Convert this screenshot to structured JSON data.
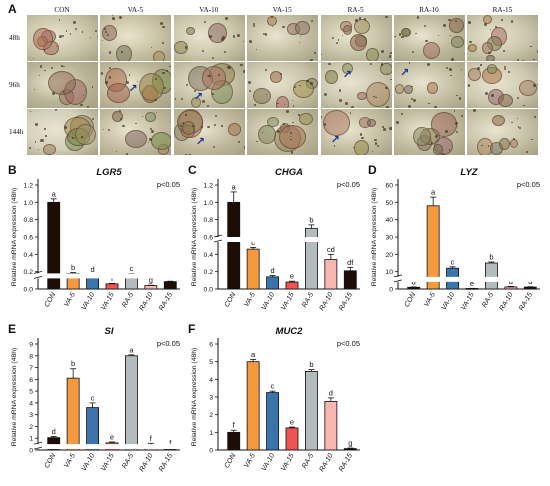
{
  "panel_letters": {
    "a": "A",
    "b": "B",
    "c": "C",
    "d": "D",
    "e": "E",
    "f": "F"
  },
  "micrographs": {
    "columns": [
      "CON",
      "VA-5",
      "VA-10",
      "VA-15",
      "RA-5",
      "RA-10",
      "RA-15"
    ],
    "rows": [
      "48h",
      "96h",
      "144h"
    ]
  },
  "colors": {
    "CON": "#1e0c07",
    "VA-5": "#f49a3e",
    "VA-10": "#3c73ad",
    "VA-15": "#ee5454",
    "RA-5": "#b4bbbc",
    "RA-10": "#f7b7b0",
    "RA-15": "#1e0c07"
  },
  "chart_data": [
    {
      "type": "bar",
      "panel": "B",
      "title": "LGR5",
      "pvalue": "p<0.05",
      "ylabel": "Relative mRNA expression (48h)",
      "categories": [
        "CON",
        "VA-5",
        "VA-10",
        "VA-15",
        "RA-5",
        "RA-10",
        "RA-15"
      ],
      "values": [
        1.0,
        0.18,
        0.16,
        0.06,
        0.17,
        0.04,
        0.085
      ],
      "errors": [
        0.04,
        0.01,
        0.01,
        0.005,
        0.01,
        0.004,
        0.005
      ],
      "letters": [
        "a",
        "b",
        "d",
        "f",
        "c",
        "g",
        "e"
      ],
      "ylim": [
        0,
        1.2
      ],
      "yticks": [
        "0.0",
        "0.2",
        "0.4",
        "0.6",
        "0.8",
        "1.0",
        "1.2"
      ],
      "axis_break": [
        0.15,
        0.18
      ]
    },
    {
      "type": "bar",
      "panel": "C",
      "title": "CHGA",
      "pvalue": "p<0.05",
      "ylabel": "Relative mRNA expression (48h)",
      "categories": [
        "CON",
        "VA-5",
        "VA-10",
        "VA-15",
        "RA-5",
        "RA-10",
        "RA-15"
      ],
      "values": [
        1.0,
        0.46,
        0.14,
        0.08,
        0.7,
        0.34,
        0.21
      ],
      "errors": [
        0.12,
        0.02,
        0.015,
        0.01,
        0.04,
        0.06,
        0.04
      ],
      "letters": [
        "a",
        "c",
        "d",
        "e",
        "b",
        "cd",
        "df"
      ],
      "ylim": [
        0,
        1.2
      ],
      "yticks": [
        "0.0",
        "0.2",
        "0.4",
        "0.6",
        "0.8",
        "1.0",
        "1.2"
      ],
      "axis_break": [
        0.56,
        0.6
      ]
    },
    {
      "type": "bar",
      "panel": "D",
      "title": "LYZ",
      "pvalue": "p<0.05",
      "ylabel": "Relative mRNA expression (48h)",
      "categories": [
        "CON",
        "VA-5",
        "VA-10",
        "VA-15",
        "RA-5",
        "RA-10",
        "RA-15"
      ],
      "values": [
        1.0,
        48,
        12,
        0.3,
        15,
        1.2,
        1.1
      ],
      "errors": [
        0.2,
        5,
        0.8,
        0.1,
        0.6,
        0.3,
        0.2
      ],
      "letters": [
        "d",
        "a",
        "c",
        "e",
        "b",
        "d",
        "d"
      ],
      "ylim": [
        0,
        60
      ],
      "yticks": [
        "0",
        "10",
        "20",
        "30",
        "40",
        "50",
        "60"
      ],
      "axis_break": [
        5.2,
        7.0
      ]
    },
    {
      "type": "bar",
      "panel": "E",
      "title": "SI",
      "pvalue": "p<0.05",
      "ylabel": "Relative mRNA expression (48h)",
      "categories": [
        "CON",
        "VA-5",
        "VA-10",
        "VA-15",
        "RA-5",
        "RA-10",
        "RA-15"
      ],
      "values": [
        1.05,
        6.1,
        3.6,
        0.6,
        8.0,
        0.45,
        0.12
      ],
      "errors": [
        0.1,
        0.8,
        0.4,
        0.08,
        0.08,
        0.12,
        0.05
      ],
      "letters": [
        "d",
        "b",
        "c",
        "e",
        "a",
        "f",
        "f"
      ],
      "ylim": [
        0,
        9
      ],
      "yticks": [
        "0",
        "1",
        "2",
        "3",
        "4",
        "5",
        "6",
        "7",
        "8",
        "9"
      ],
      "axis_break": [
        0.2,
        0.5
      ]
    },
    {
      "type": "bar",
      "panel": "F",
      "title": "MUC2",
      "pvalue": "p<0.05",
      "ylabel": "Relative mRNA expression (48h)",
      "categories": [
        "CON",
        "VA-5",
        "VA-10",
        "VA-15",
        "RA-5",
        "RA-10",
        "RA-15"
      ],
      "values": [
        1.0,
        5.0,
        3.25,
        1.25,
        4.45,
        2.75,
        0.08
      ],
      "errors": [
        0.12,
        0.12,
        0.08,
        0.05,
        0.1,
        0.2,
        0.03
      ],
      "letters": [
        "f",
        "a",
        "c",
        "e",
        "b",
        "d",
        "g"
      ],
      "ylim": [
        0,
        6
      ],
      "yticks": [
        "0",
        "1",
        "2",
        "3",
        "4",
        "5",
        "6"
      ],
      "axis_break": null
    }
  ]
}
